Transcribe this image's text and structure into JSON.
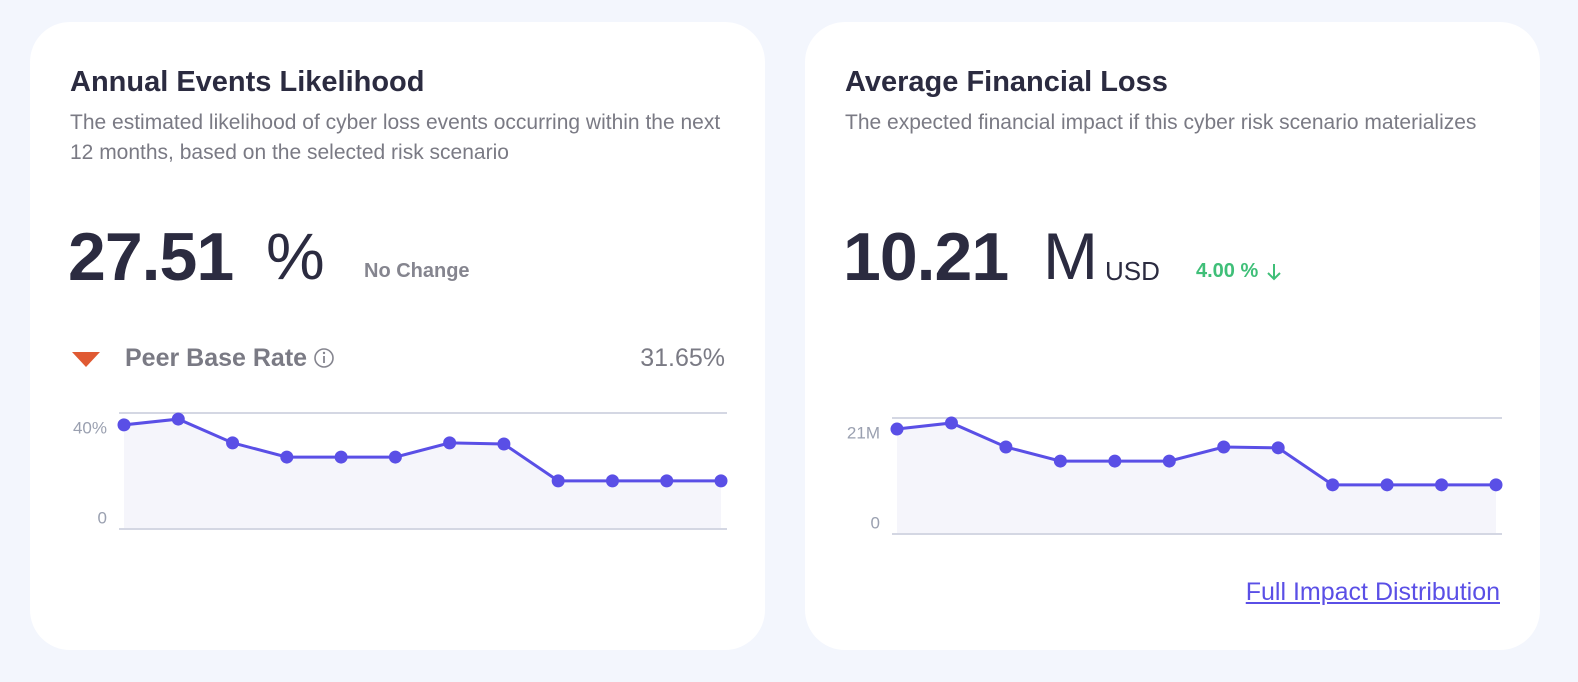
{
  "cards": [
    {
      "title": "Annual Events Likelihood",
      "description": "The estimated likelihood of cyber loss events occurring within the next 12 months, based on the selected risk scenario",
      "value": "27.51",
      "unit": "%",
      "change": "No Change",
      "peer_label": "Peer Base Rate",
      "peer_value": "31.65%",
      "chart": {
        "type": "line",
        "color": "#5a4fe6",
        "values": [
          35.9,
          37.9,
          29.7,
          24.8,
          24.8,
          24.8,
          29.7,
          29.3,
          16.6,
          16.6,
          16.6,
          16.6
        ],
        "ylim": [
          0,
          40
        ],
        "yticks": [
          0,
          {
            "value": 40,
            "label": "40%"
          }
        ]
      }
    },
    {
      "title": "Average Financial Loss",
      "description": "The expected financial impact if this cyber risk scenario materializes",
      "value": "10.21",
      "unit": "M",
      "currency": "USD",
      "change": "4.00 %",
      "link": "Full Impact Distribution",
      "chart": {
        "type": "line",
        "color": "#5a4fe6",
        "values": [
          19.0,
          20.1,
          15.75,
          13.2,
          13.2,
          13.2,
          15.75,
          15.6,
          8.9,
          8.9,
          8.9,
          8.9
        ],
        "ylim": [
          0,
          21
        ],
        "yticks": [
          0,
          {
            "value": 21,
            "label": "21M"
          }
        ]
      }
    }
  ]
}
